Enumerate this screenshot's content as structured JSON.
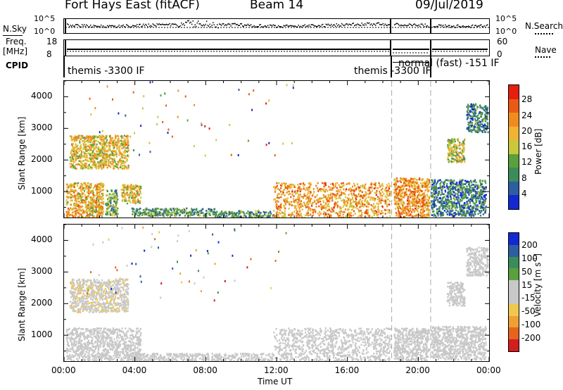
{
  "header": {
    "radar": "Fort Hays East (fitACF)",
    "beam": "Beam 14",
    "date": "09/Jul/2019"
  },
  "top_panels": {
    "nsky_label": "N.Sky",
    "nsky_top": "10^5",
    "nsky_bot": "10^0",
    "nsearch_label": "N.Search",
    "nsearch_top": "10^5",
    "nsearch_bot": "10^0",
    "freq_label": "Freq.",
    "freq_unit": "[MHz]",
    "freq_top": "18",
    "freq_bot": "8",
    "nave_label": "Nave",
    "nave_top": "60",
    "nave_bot": "0",
    "cpid_label": "CPID",
    "cpid_1": "themis -3300 IF",
    "cpid_2": "themis -3300 IF",
    "cpid_3": "normal (fast) -151 IF"
  },
  "colors": {
    "power": [
      "#1428d2",
      "#2d5fa0",
      "#3c8c5a",
      "#5aa03c",
      "#c8c83c",
      "#f0b432",
      "#f08c1e",
      "#eb5a14",
      "#e61e0f"
    ],
    "velocity": [
      "#d21e1e",
      "#e6641e",
      "#f0a032",
      "#f0c850",
      "#c8c8c8",
      "#c8c8c8",
      "#5aa03c",
      "#3c8c5a",
      "#2d5fa0",
      "#1428d2"
    ]
  },
  "chart_data": [
    {
      "type": "heatmap",
      "ylabel": "Slant Range [km]",
      "xlabel": "Time UT",
      "x_ticks": [
        "00:00",
        "04:00",
        "08:00",
        "12:00",
        "16:00",
        "20:00",
        "00:00"
      ],
      "y_ticks": [
        "1000",
        "2000",
        "3000",
        "4000"
      ],
      "xlim": [
        0,
        24
      ],
      "ylim": [
        180,
        4500
      ],
      "colorbar_label": "Power [dB]",
      "colorbar_ticks": [
        "4",
        "8",
        "12",
        "16",
        "20",
        "24",
        "28"
      ],
      "colorbar_range": [
        0,
        32
      ],
      "regions": [
        {
          "t0": 0.1,
          "t1": 2.2,
          "r0": 200,
          "r1": 1300,
          "p": 20
        },
        {
          "t0": 2.3,
          "t1": 3.0,
          "r0": 250,
          "r1": 1100,
          "p": 12
        },
        {
          "t0": 3.2,
          "t1": 4.3,
          "r0": 650,
          "r1": 1250,
          "p": 18
        },
        {
          "t0": 0.3,
          "t1": 3.6,
          "r0": 1750,
          "r1": 2800,
          "p": 18
        },
        {
          "t0": 3.8,
          "t1": 8.5,
          "r0": 250,
          "r1": 500,
          "p": 10
        },
        {
          "t0": 8.5,
          "t1": 11.8,
          "r0": 200,
          "r1": 420,
          "p": 10
        },
        {
          "t0": 11.8,
          "t1": 18.4,
          "r0": 200,
          "r1": 1300,
          "p": 22
        },
        {
          "t0": 18.6,
          "t1": 20.6,
          "r0": 200,
          "r1": 1450,
          "p": 22
        },
        {
          "t0": 20.7,
          "t1": 23.8,
          "r0": 250,
          "r1": 1400,
          "p": 8
        },
        {
          "t0": 21.6,
          "t1": 22.6,
          "r0": 1950,
          "r1": 2700,
          "p": 16
        },
        {
          "t0": 22.7,
          "t1": 23.9,
          "r0": 2900,
          "r1": 3800,
          "p": 8
        }
      ]
    },
    {
      "type": "heatmap",
      "ylabel": "Slant Range [km]",
      "xlabel": "Time UT",
      "x_ticks": [
        "00:00",
        "04:00",
        "08:00",
        "12:00",
        "16:00",
        "20:00",
        "00:00"
      ],
      "y_ticks": [
        "1000",
        "2000",
        "3000",
        "4000"
      ],
      "xlim": [
        0,
        24
      ],
      "ylim": [
        180,
        4500
      ],
      "colorbar_label": "Velocity [m s^-1]",
      "colorbar_ticks": [
        "-200",
        "-100",
        "-50",
        "-15",
        "15",
        "50",
        "100",
        "200"
      ],
      "colorbar_range": [
        -250,
        250
      ],
      "regions": [
        {
          "t0": 0.1,
          "t1": 4.3,
          "r0": 200,
          "r1": 1250,
          "v": 0
        },
        {
          "t0": 0.3,
          "t1": 3.6,
          "r0": 1750,
          "r1": 2800,
          "v": -40
        },
        {
          "t0": 3.8,
          "t1": 11.8,
          "r0": 200,
          "r1": 450,
          "v": 20
        },
        {
          "t0": 11.8,
          "t1": 18.4,
          "r0": 200,
          "r1": 1250,
          "v": 0
        },
        {
          "t0": 18.6,
          "t1": 20.6,
          "r0": 200,
          "r1": 1250,
          "v": 0
        },
        {
          "t0": 20.7,
          "t1": 23.8,
          "r0": 250,
          "r1": 1300,
          "v": 0
        },
        {
          "t0": 21.6,
          "t1": 22.6,
          "r0": 1950,
          "r1": 2700,
          "v": 0
        },
        {
          "t0": 22.7,
          "t1": 23.9,
          "r0": 2900,
          "r1": 3800,
          "v": 0
        }
      ]
    }
  ]
}
